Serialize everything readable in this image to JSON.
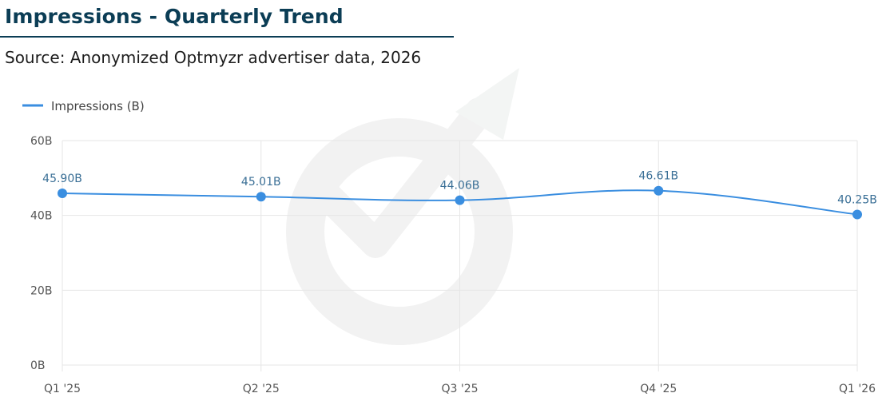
{
  "header": {
    "title": "Impressions - Quarterly Trend",
    "subtitle": "Source: Anonymized Optmyzr advertiser data, 2026"
  },
  "chart_data": {
    "type": "line",
    "categories": [
      "Q1 '25",
      "Q2 '25",
      "Q3 '25",
      "Q4 '25",
      "Q1 '26"
    ],
    "series": [
      {
        "name": "Impressions (B)",
        "values": [
          45.9,
          45.01,
          44.06,
          46.61,
          40.25
        ],
        "data_labels": [
          "45.90B",
          "45.01B",
          "44.06B",
          "46.61B",
          "40.25B"
        ],
        "color": "#3a8ee0"
      }
    ],
    "yticks": [
      0,
      20,
      40,
      60
    ],
    "ytick_labels": [
      "0B",
      "20B",
      "40B",
      "60B"
    ],
    "ylim": [
      0,
      60
    ],
    "grid": true,
    "legend_position": "top-left",
    "watermark": "Optmyzr logo",
    "colors": {
      "title": "#0b3d55",
      "line": "#3a8ee0",
      "grid": "#e6e6e6"
    }
  }
}
